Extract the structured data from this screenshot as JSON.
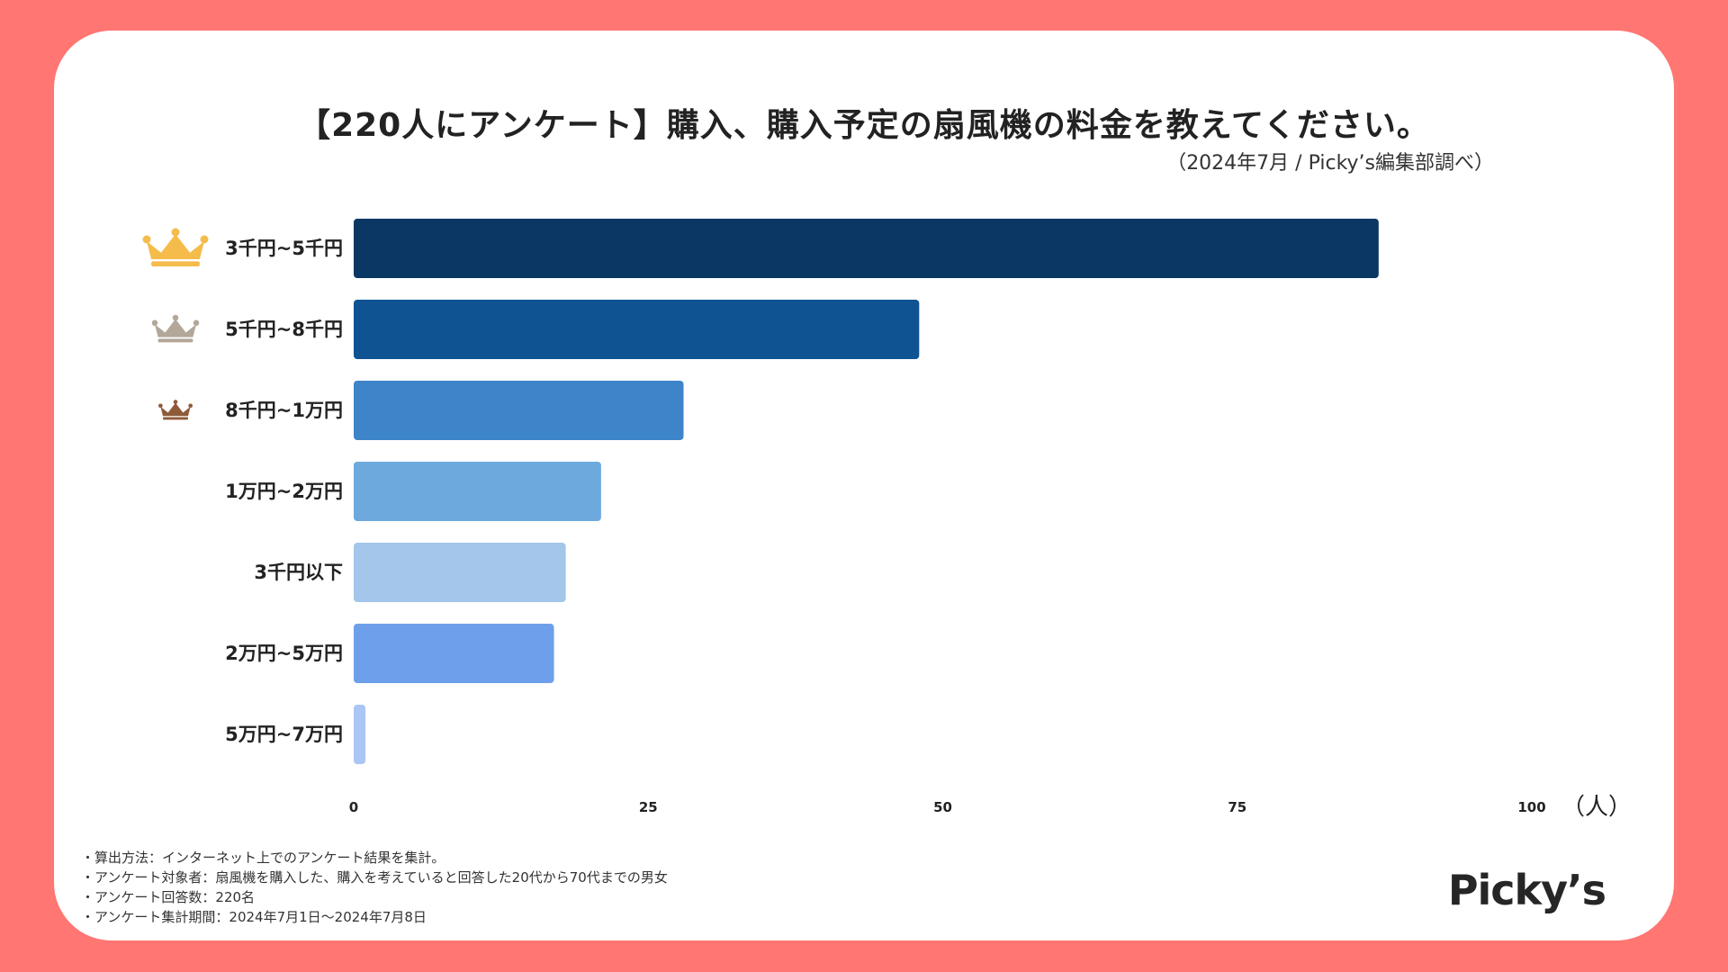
{
  "title": "【220人にアンケート】購入、購入予定の扇風機の料金を教えてください。",
  "source": "（2024年7月 / Picky’s編集部調べ）",
  "chart_data": {
    "type": "bar",
    "orientation": "horizontal",
    "title": "【220人にアンケート】購入、購入予定の扇風機の料金を教えてください。",
    "categories": [
      "3千円~5千円",
      "5千円~8千円",
      "8千円~1万円",
      "1万円~2万円",
      "3千円以下",
      "2万円~5万円",
      "5万円~7万円"
    ],
    "values": [
      87,
      48,
      28,
      21,
      18,
      17,
      1
    ],
    "colors": [
      "#0a3763",
      "#0f5393",
      "#3d85c8",
      "#6ea9de",
      "#a3c6ea",
      "#6e9feb",
      "#a9c6f5"
    ],
    "xlim": [
      0,
      100
    ],
    "xticks": [
      "0",
      "25",
      "50",
      "75",
      "100"
    ],
    "xticks_values": [
      0,
      25,
      50,
      75,
      100
    ],
    "unit": "（人）",
    "xlabel": "（人）",
    "ylabel": "",
    "grid": false,
    "ranks": [
      {
        "rank": 1,
        "icon": "gold-crown-icon",
        "color": "#f5bc4c"
      },
      {
        "rank": 2,
        "icon": "silver-crown-icon",
        "color": "#b2a799"
      },
      {
        "rank": 3,
        "icon": "bronze-crown-icon",
        "color": "#8e5b38"
      }
    ]
  },
  "notes": [
    "・算出方法：インターネット上でのアンケート結果を集計。",
    "・アンケート対象者：扇風機を購入した、購入を考えていると回答した20代から70代までの男女",
    "・アンケート回答数：220名",
    "・アンケート集計期間：2024年7月1日〜2024年7月8日"
  ],
  "logo": "Picky’s"
}
